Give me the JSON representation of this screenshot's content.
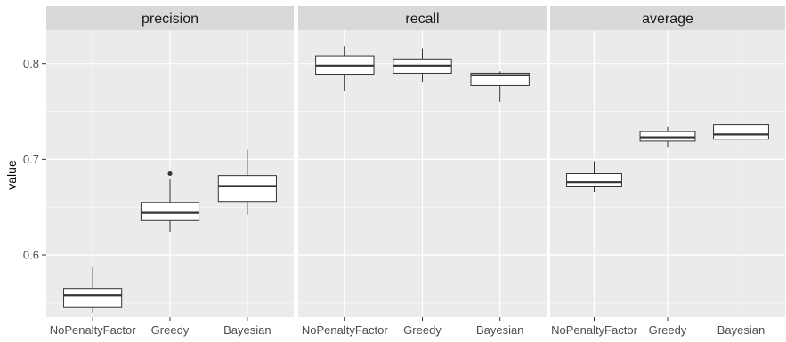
{
  "chart_data": {
    "type": "boxplot",
    "ylabel": "value",
    "xlabel": "",
    "ylim": [
      0.535,
      0.835
    ],
    "yticks": [
      0.6,
      0.7,
      0.8
    ],
    "ytick_labels": [
      "0.6",
      "0.7",
      "0.8"
    ],
    "categories": [
      "NoPenaltyFactor",
      "Greedy",
      "Bayesian"
    ],
    "grid": true,
    "facets": [
      {
        "label": "precision",
        "boxes": [
          {
            "category": "NoPenaltyFactor",
            "min": 0.54,
            "q1": 0.545,
            "median": 0.558,
            "q3": 0.565,
            "max": 0.587,
            "outliers": []
          },
          {
            "category": "Greedy",
            "min": 0.624,
            "q1": 0.636,
            "median": 0.644,
            "q3": 0.655,
            "max": 0.68,
            "outliers": [
              0.685
            ]
          },
          {
            "category": "Bayesian",
            "min": 0.642,
            "q1": 0.656,
            "median": 0.672,
            "q3": 0.683,
            "max": 0.71,
            "outliers": []
          }
        ]
      },
      {
        "label": "recall",
        "boxes": [
          {
            "category": "NoPenaltyFactor",
            "min": 0.771,
            "q1": 0.789,
            "median": 0.798,
            "q3": 0.808,
            "max": 0.818,
            "outliers": []
          },
          {
            "category": "Greedy",
            "min": 0.781,
            "q1": 0.79,
            "median": 0.798,
            "q3": 0.805,
            "max": 0.816,
            "outliers": []
          },
          {
            "category": "Bayesian",
            "min": 0.76,
            "q1": 0.777,
            "median": 0.788,
            "q3": 0.79,
            "max": 0.792,
            "outliers": []
          }
        ]
      },
      {
        "label": "average",
        "boxes": [
          {
            "category": "NoPenaltyFactor",
            "min": 0.666,
            "q1": 0.672,
            "median": 0.676,
            "q3": 0.685,
            "max": 0.698,
            "outliers": []
          },
          {
            "category": "Greedy",
            "min": 0.712,
            "q1": 0.719,
            "median": 0.723,
            "q3": 0.729,
            "max": 0.734,
            "outliers": []
          },
          {
            "category": "Bayesian",
            "min": 0.711,
            "q1": 0.721,
            "median": 0.726,
            "q3": 0.736,
            "max": 0.74,
            "outliers": []
          }
        ]
      }
    ],
    "colors": {
      "panel_bg": "#ebebeb",
      "strip_bg": "#d9d9d9",
      "grid": "#ffffff",
      "box_fill": "#ffffff",
      "box_stroke": "#333333",
      "tick": "#333333"
    }
  }
}
